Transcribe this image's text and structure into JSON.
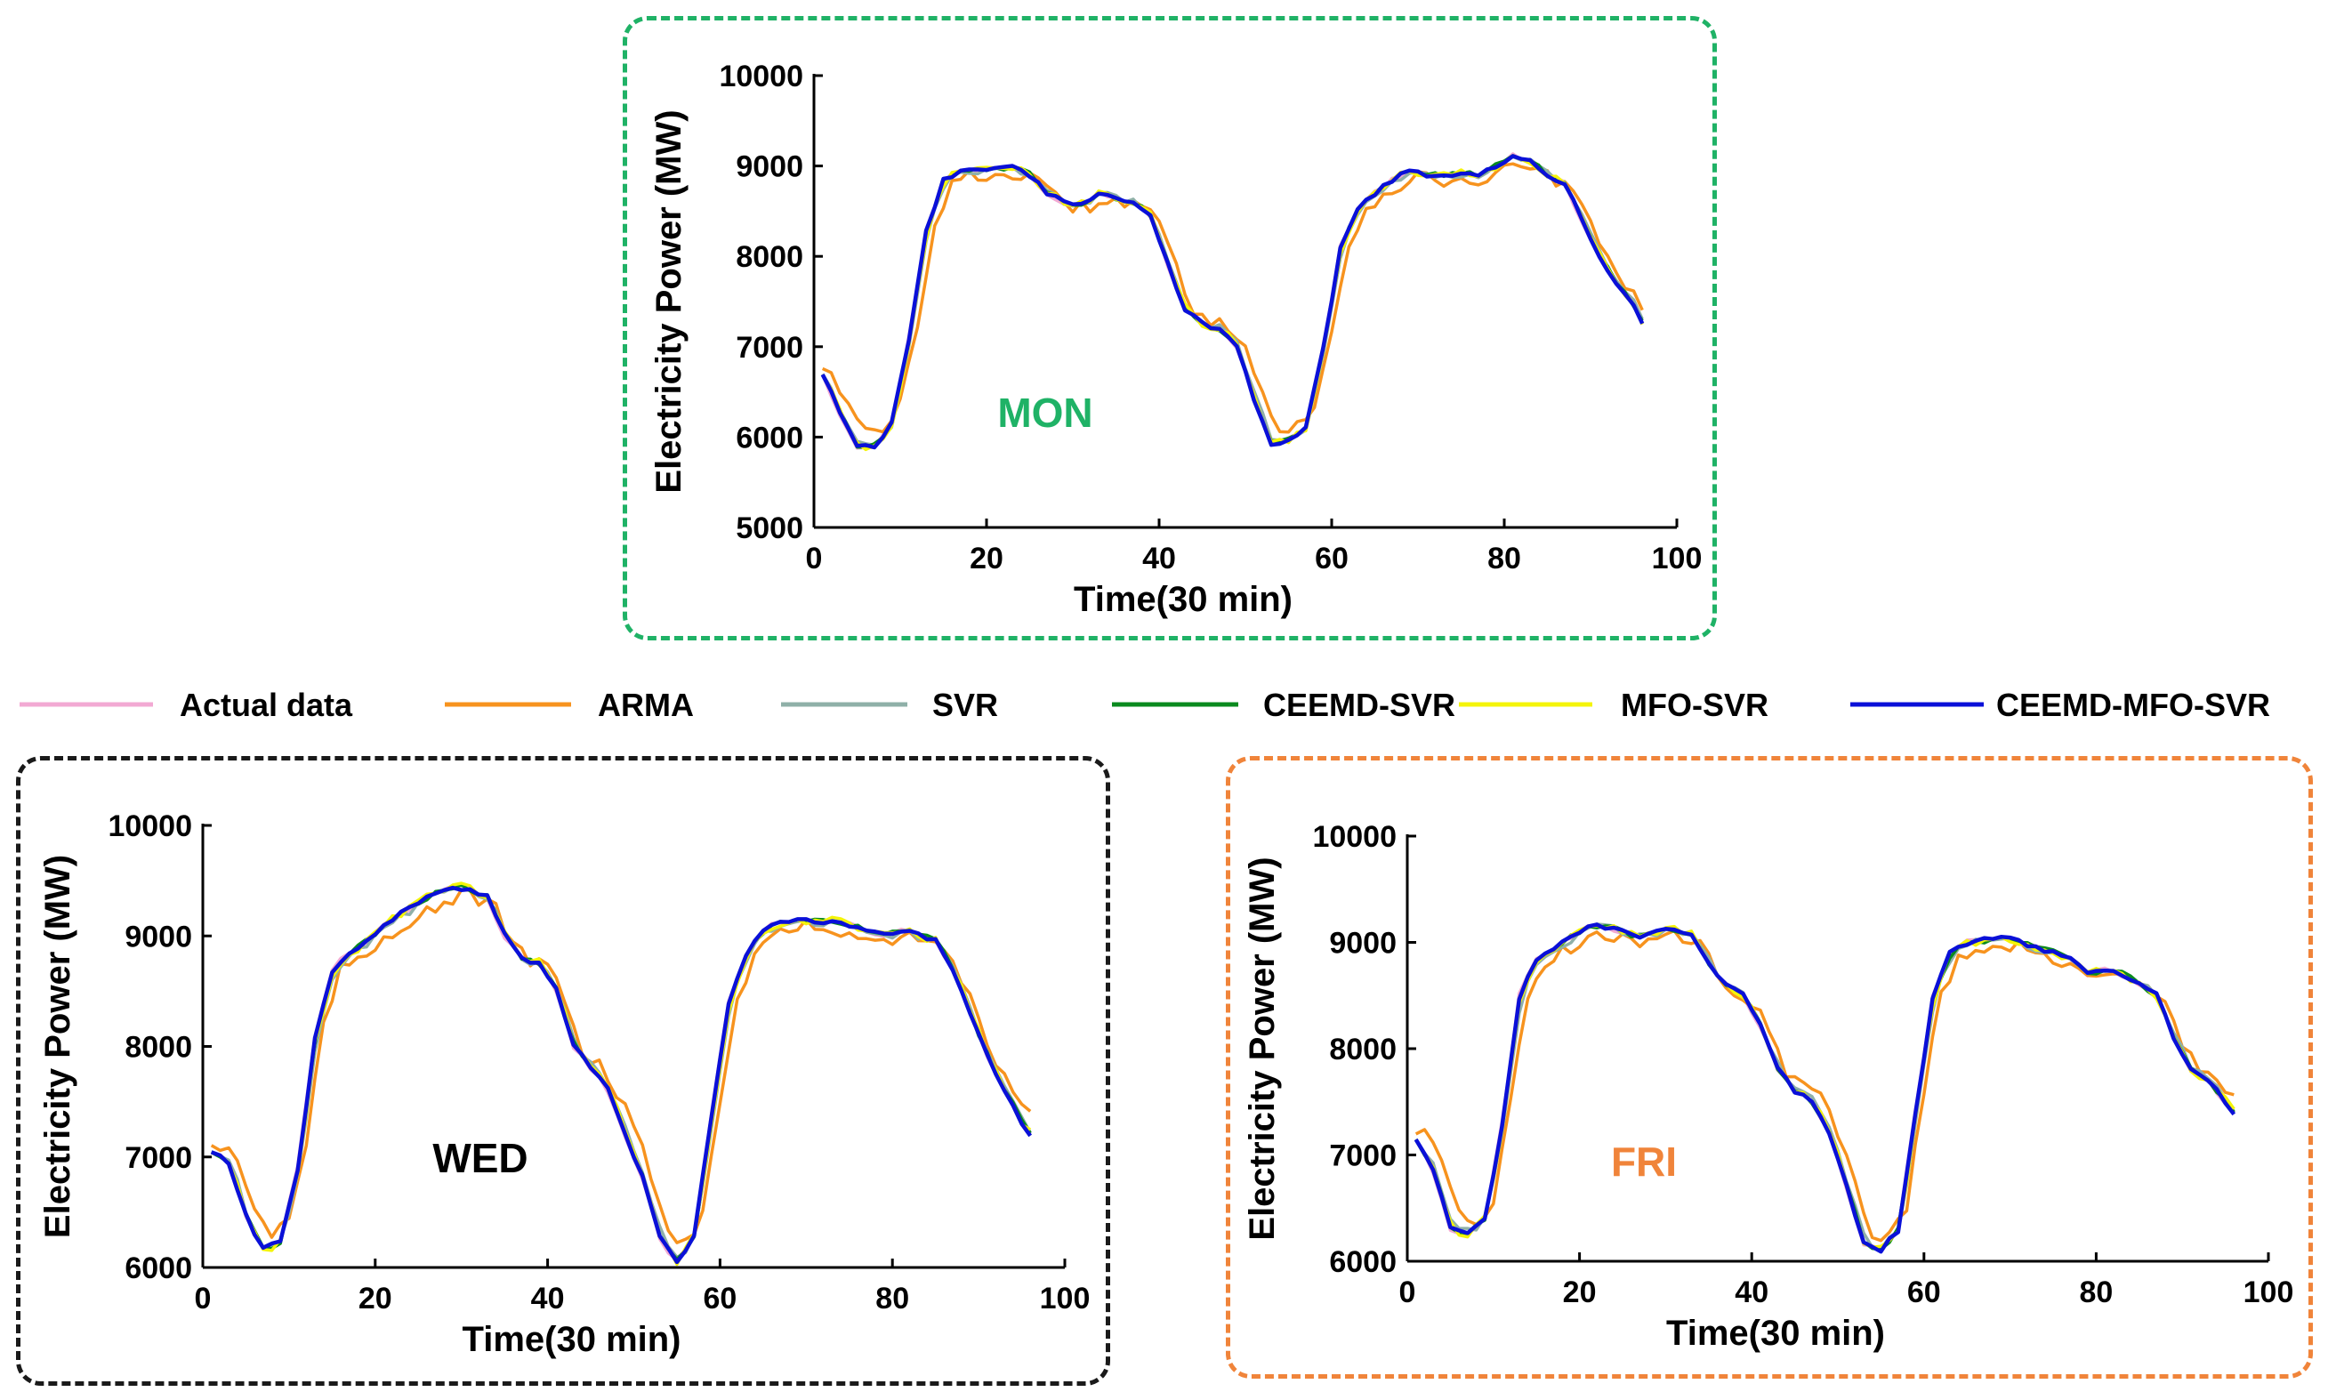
{
  "legend": {
    "items": [
      {
        "name": "Actual data",
        "color": "#f2a9d3"
      },
      {
        "name": "ARMA",
        "color": "#f7931e"
      },
      {
        "name": "SVR",
        "color": "#8fb0a8"
      },
      {
        "name": "CEEMD-SVR",
        "color": "#0a8a1e"
      },
      {
        "name": "MFO-SVR",
        "color": "#f4f40a"
      },
      {
        "name": "CEEMD-MFO-SVR",
        "color": "#0a10d8"
      }
    ]
  },
  "chart_data": [
    {
      "id": "mon",
      "type": "line",
      "day_label": "MON",
      "day_color": "#1fb266",
      "frame_color": "#1fb266",
      "xlabel": "Time(30 min)",
      "ylabel": "Electricity Power (MW)",
      "xlim": [
        0,
        100
      ],
      "ylim": [
        5000,
        10000
      ],
      "xticks": [
        0,
        20,
        40,
        60,
        80,
        100
      ],
      "yticks": [
        5000,
        6000,
        7000,
        8000,
        9000,
        10000
      ],
      "key_points": [
        [
          1,
          6700
        ],
        [
          3,
          6250
        ],
        [
          5,
          5900
        ],
        [
          7,
          5900
        ],
        [
          9,
          6150
        ],
        [
          11,
          7100
        ],
        [
          13,
          8300
        ],
        [
          15,
          8850
        ],
        [
          17,
          8950
        ],
        [
          19,
          8950
        ],
        [
          21,
          8980
        ],
        [
          23,
          8980
        ],
        [
          25,
          8900
        ],
        [
          27,
          8700
        ],
        [
          29,
          8600
        ],
        [
          31,
          8580
        ],
        [
          33,
          8700
        ],
        [
          35,
          8650
        ],
        [
          37,
          8600
        ],
        [
          39,
          8450
        ],
        [
          41,
          7900
        ],
        [
          43,
          7400
        ],
        [
          45,
          7250
        ],
        [
          47,
          7200
        ],
        [
          49,
          7000
        ],
        [
          51,
          6400
        ],
        [
          53,
          5920
        ],
        [
          55,
          5970
        ],
        [
          57,
          6100
        ],
        [
          59,
          7000
        ],
        [
          61,
          8100
        ],
        [
          63,
          8550
        ],
        [
          65,
          8700
        ],
        [
          67,
          8850
        ],
        [
          69,
          8950
        ],
        [
          71,
          8900
        ],
        [
          73,
          8900
        ],
        [
          75,
          8920
        ],
        [
          77,
          8900
        ],
        [
          79,
          9000
        ],
        [
          81,
          9120
        ],
        [
          83,
          9050
        ],
        [
          85,
          8900
        ],
        [
          87,
          8800
        ],
        [
          89,
          8400
        ],
        [
          91,
          8000
        ],
        [
          93,
          7700
        ],
        [
          95,
          7450
        ],
        [
          96,
          7250
        ]
      ]
    },
    {
      "id": "wed",
      "type": "line",
      "day_label": "WED",
      "day_color": "#000000",
      "frame_color": "#1a1a1a",
      "xlabel": "Time(30 min)",
      "ylabel": "Electricity Power (MW)",
      "xlim": [
        0,
        100
      ],
      "ylim": [
        6000,
        10000
      ],
      "xticks": [
        0,
        20,
        40,
        60,
        80,
        100
      ],
      "yticks": [
        6000,
        7000,
        8000,
        9000,
        10000
      ],
      "key_points": [
        [
          1,
          7050
        ],
        [
          3,
          6950
        ],
        [
          5,
          6450
        ],
        [
          7,
          6150
        ],
        [
          9,
          6250
        ],
        [
          11,
          6900
        ],
        [
          13,
          8100
        ],
        [
          15,
          8700
        ],
        [
          17,
          8850
        ],
        [
          19,
          8950
        ],
        [
          21,
          9100
        ],
        [
          23,
          9200
        ],
        [
          25,
          9300
        ],
        [
          27,
          9400
        ],
        [
          29,
          9450
        ],
        [
          31,
          9420
        ],
        [
          33,
          9350
        ],
        [
          35,
          9000
        ],
        [
          37,
          8800
        ],
        [
          39,
          8750
        ],
        [
          41,
          8500
        ],
        [
          43,
          8000
        ],
        [
          45,
          7800
        ],
        [
          47,
          7600
        ],
        [
          49,
          7200
        ],
        [
          51,
          6800
        ],
        [
          53,
          6250
        ],
        [
          55,
          6050
        ],
        [
          57,
          6300
        ],
        [
          59,
          7400
        ],
        [
          61,
          8400
        ],
        [
          63,
          8850
        ],
        [
          65,
          9050
        ],
        [
          67,
          9130
        ],
        [
          69,
          9150
        ],
        [
          71,
          9120
        ],
        [
          73,
          9130
        ],
        [
          75,
          9100
        ],
        [
          77,
          9050
        ],
        [
          79,
          9000
        ],
        [
          81,
          9050
        ],
        [
          83,
          9000
        ],
        [
          85,
          8950
        ],
        [
          87,
          8700
        ],
        [
          89,
          8300
        ],
        [
          91,
          7900
        ],
        [
          93,
          7600
        ],
        [
          95,
          7300
        ],
        [
          96,
          7200
        ]
      ]
    },
    {
      "id": "fri",
      "type": "line",
      "day_label": "FRI",
      "day_color": "#f0843a",
      "frame_color": "#f0843a",
      "xlabel": "Time(30 min)",
      "ylabel": "Electricity Power (MW)",
      "xlim": [
        0,
        100
      ],
      "ylim": [
        6000,
        10000
      ],
      "xticks": [
        0,
        20,
        40,
        60,
        80,
        100
      ],
      "yticks": [
        6000,
        7000,
        8000,
        9000,
        10000
      ],
      "key_points": [
        [
          1,
          7150
        ],
        [
          3,
          6850
        ],
        [
          5,
          6300
        ],
        [
          7,
          6250
        ],
        [
          9,
          6400
        ],
        [
          11,
          7300
        ],
        [
          13,
          8500
        ],
        [
          15,
          8850
        ],
        [
          17,
          8950
        ],
        [
          19,
          9050
        ],
        [
          21,
          9150
        ],
        [
          23,
          9150
        ],
        [
          25,
          9100
        ],
        [
          27,
          9050
        ],
        [
          29,
          9100
        ],
        [
          31,
          9120
        ],
        [
          33,
          9080
        ],
        [
          35,
          8800
        ],
        [
          37,
          8600
        ],
        [
          39,
          8500
        ],
        [
          41,
          8200
        ],
        [
          43,
          7800
        ],
        [
          45,
          7600
        ],
        [
          47,
          7500
        ],
        [
          49,
          7200
        ],
        [
          51,
          6700
        ],
        [
          53,
          6150
        ],
        [
          55,
          6100
        ],
        [
          57,
          6300
        ],
        [
          59,
          7400
        ],
        [
          61,
          8500
        ],
        [
          63,
          8900
        ],
        [
          65,
          9000
        ],
        [
          67,
          9020
        ],
        [
          69,
          9050
        ],
        [
          71,
          9000
        ],
        [
          73,
          8950
        ],
        [
          75,
          8900
        ],
        [
          77,
          8850
        ],
        [
          79,
          8700
        ],
        [
          81,
          8750
        ],
        [
          83,
          8700
        ],
        [
          85,
          8600
        ],
        [
          87,
          8500
        ],
        [
          89,
          8100
        ],
        [
          91,
          7800
        ],
        [
          93,
          7700
        ],
        [
          95,
          7500
        ],
        [
          96,
          7400
        ]
      ]
    }
  ]
}
